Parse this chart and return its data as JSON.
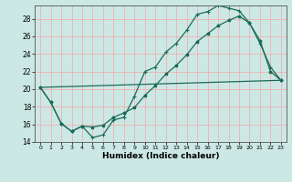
{
  "xlabel": "Humidex (Indice chaleur)",
  "bg_color": "#cce8e4",
  "grid_color": "#f0b0b0",
  "line_color": "#1a6b5a",
  "xlim": [
    -0.5,
    23.5
  ],
  "ylim": [
    14,
    29.5
  ],
  "xticks": [
    0,
    1,
    2,
    3,
    4,
    5,
    6,
    7,
    8,
    9,
    10,
    11,
    12,
    13,
    14,
    15,
    16,
    17,
    18,
    19,
    20,
    21,
    22,
    23
  ],
  "yticks": [
    14,
    16,
    18,
    20,
    22,
    24,
    26,
    28
  ],
  "line1_x": [
    0,
    1,
    2,
    3,
    4,
    5,
    6,
    7,
    8,
    9,
    10,
    11,
    12,
    13,
    14,
    15,
    16,
    17,
    18,
    19,
    20,
    21,
    22,
    23
  ],
  "line1_y": [
    20.2,
    18.5,
    16.1,
    15.2,
    15.8,
    14.5,
    14.8,
    16.5,
    16.8,
    19.2,
    22.0,
    22.5,
    24.2,
    25.2,
    26.7,
    28.5,
    28.8,
    29.5,
    29.2,
    28.9,
    27.5,
    25.2,
    22.5,
    21.0
  ],
  "line2_x": [
    0,
    1,
    2,
    3,
    4,
    5,
    6,
    7,
    8,
    9,
    10,
    11,
    12,
    13,
    14,
    15,
    16,
    17,
    18,
    19,
    20,
    21,
    22,
    23
  ],
  "line2_y": [
    20.2,
    18.5,
    16.1,
    15.2,
    15.8,
    15.7,
    15.9,
    16.8,
    17.3,
    17.9,
    19.3,
    20.4,
    21.7,
    22.7,
    23.9,
    25.4,
    26.3,
    27.2,
    27.8,
    28.3,
    27.5,
    25.5,
    22.0,
    21.0
  ],
  "line3_x": [
    0,
    23
  ],
  "line3_y": [
    20.2,
    21.0
  ]
}
